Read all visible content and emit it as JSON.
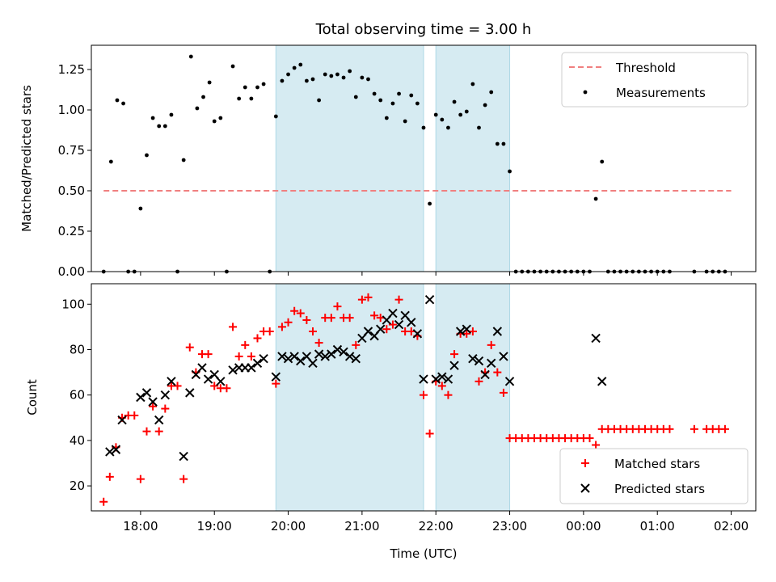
{
  "chart_data": [
    {
      "type": "scatter",
      "title": "Total observing time = 3.00 h",
      "xlabel": "",
      "ylabel": "Matched/Predicted stars",
      "xlim": [
        "17:20",
        "02:20"
      ],
      "ylim": [
        0,
        1.4
      ],
      "yticks": [
        "0.00",
        "0.25",
        "0.50",
        "0.75",
        "1.00",
        "1.25"
      ],
      "shaded_intervals": [
        [
          "19:50",
          "21:50"
        ],
        [
          "22:00",
          "23:00"
        ]
      ],
      "legend_position": "top-right",
      "threshold": {
        "name": "Threshold",
        "value": 0.5,
        "x_range": [
          "17:30",
          "02:00"
        ],
        "color": "#f08080",
        "style": "dashed"
      },
      "series": [
        {
          "name": "Measurements",
          "color": "#000000",
          "points": [
            [
              "17:30",
              0.0
            ],
            [
              "17:36",
              0.68
            ],
            [
              "17:41",
              1.06
            ],
            [
              "17:46",
              1.04
            ],
            [
              "17:50",
              0.0
            ],
            [
              "17:55",
              0.0
            ],
            [
              "18:00",
              0.39
            ],
            [
              "18:05",
              0.72
            ],
            [
              "18:10",
              0.95
            ],
            [
              "18:15",
              0.9
            ],
            [
              "18:20",
              0.9
            ],
            [
              "18:25",
              0.97
            ],
            [
              "18:30",
              0.0
            ],
            [
              "18:35",
              0.69
            ],
            [
              "18:41",
              1.33
            ],
            [
              "18:46",
              1.01
            ],
            [
              "18:51",
              1.08
            ],
            [
              "18:56",
              1.17
            ],
            [
              "19:00",
              0.93
            ],
            [
              "19:05",
              0.95
            ],
            [
              "19:10",
              0.0
            ],
            [
              "19:15",
              1.27
            ],
            [
              "19:20",
              1.07
            ],
            [
              "19:25",
              1.14
            ],
            [
              "19:30",
              1.07
            ],
            [
              "19:35",
              1.14
            ],
            [
              "19:40",
              1.16
            ],
            [
              "19:45",
              0.0
            ],
            [
              "19:50",
              0.96
            ],
            [
              "19:55",
              1.18
            ],
            [
              "20:00",
              1.22
            ],
            [
              "20:05",
              1.26
            ],
            [
              "20:10",
              1.28
            ],
            [
              "20:15",
              1.18
            ],
            [
              "20:20",
              1.19
            ],
            [
              "20:25",
              1.06
            ],
            [
              "20:30",
              1.22
            ],
            [
              "20:35",
              1.21
            ],
            [
              "20:40",
              1.22
            ],
            [
              "20:45",
              1.2
            ],
            [
              "20:50",
              1.24
            ],
            [
              "20:55",
              1.08
            ],
            [
              "21:00",
              1.2
            ],
            [
              "21:05",
              1.19
            ],
            [
              "21:10",
              1.1
            ],
            [
              "21:15",
              1.06
            ],
            [
              "21:20",
              0.95
            ],
            [
              "21:25",
              1.04
            ],
            [
              "21:30",
              1.1
            ],
            [
              "21:35",
              0.93
            ],
            [
              "21:40",
              1.09
            ],
            [
              "21:45",
              1.04
            ],
            [
              "21:50",
              0.89
            ],
            [
              "21:55",
              0.42
            ],
            [
              "22:00",
              0.97
            ],
            [
              "22:05",
              0.94
            ],
            [
              "22:10",
              0.89
            ],
            [
              "22:15",
              1.05
            ],
            [
              "22:20",
              0.97
            ],
            [
              "22:25",
              0.99
            ],
            [
              "22:30",
              1.16
            ],
            [
              "22:35",
              0.89
            ],
            [
              "22:40",
              1.03
            ],
            [
              "22:45",
              1.11
            ],
            [
              "22:50",
              0.79
            ],
            [
              "22:55",
              0.79
            ],
            [
              "23:00",
              0.62
            ],
            [
              "23:05",
              0.0
            ],
            [
              "23:10",
              0.0
            ],
            [
              "23:15",
              0.0
            ],
            [
              "23:20",
              0.0
            ],
            [
              "23:25",
              0.0
            ],
            [
              "23:30",
              0.0
            ],
            [
              "23:35",
              0.0
            ],
            [
              "23:40",
              0.0
            ],
            [
              "23:45",
              0.0
            ],
            [
              "23:50",
              0.0
            ],
            [
              "23:55",
              0.0
            ],
            [
              "00:00",
              0.0
            ],
            [
              "00:05",
              0.0
            ],
            [
              "00:10",
              0.45
            ],
            [
              "00:15",
              0.68
            ],
            [
              "00:20",
              0.0
            ],
            [
              "00:25",
              0.0
            ],
            [
              "00:30",
              0.0
            ],
            [
              "00:35",
              0.0
            ],
            [
              "00:40",
              0.0
            ],
            [
              "00:45",
              0.0
            ],
            [
              "00:50",
              0.0
            ],
            [
              "00:55",
              0.0
            ],
            [
              "01:00",
              0.0
            ],
            [
              "01:05",
              0.0
            ],
            [
              "01:10",
              0.0
            ],
            [
              "01:30",
              0.0
            ],
            [
              "01:40",
              0.0
            ],
            [
              "01:45",
              0.0
            ],
            [
              "01:50",
              0.0
            ],
            [
              "01:55",
              0.0
            ]
          ]
        }
      ]
    },
    {
      "type": "scatter",
      "title": "",
      "xlabel": "Time (UTC)",
      "ylabel": "Count",
      "xlim": [
        "17:20",
        "02:20"
      ],
      "ylim": [
        9,
        109
      ],
      "xticks": [
        "18:00",
        "19:00",
        "20:00",
        "21:00",
        "22:00",
        "23:00",
        "00:00",
        "01:00",
        "02:00"
      ],
      "yticks": [
        "20",
        "40",
        "60",
        "80",
        "100"
      ],
      "shaded_intervals": [
        [
          "19:50",
          "21:50"
        ],
        [
          "22:00",
          "23:00"
        ]
      ],
      "legend_position": "bottom-right",
      "series": [
        {
          "name": "Matched stars",
          "marker": "plus",
          "color": "#ff0000",
          "points": [
            [
              "17:30",
              13
            ],
            [
              "17:35",
              24
            ],
            [
              "17:40",
              37
            ],
            [
              "17:45",
              50
            ],
            [
              "17:50",
              51
            ],
            [
              "17:55",
              51
            ],
            [
              "18:00",
              23
            ],
            [
              "18:05",
              44
            ],
            [
              "18:10",
              55
            ],
            [
              "18:15",
              44
            ],
            [
              "18:20",
              54
            ],
            [
              "18:25",
              64
            ],
            [
              "18:30",
              64
            ],
            [
              "18:35",
              23
            ],
            [
              "18:40",
              81
            ],
            [
              "18:45",
              70
            ],
            [
              "18:50",
              78
            ],
            [
              "18:55",
              78
            ],
            [
              "19:00",
              64
            ],
            [
              "19:05",
              63
            ],
            [
              "19:10",
              63
            ],
            [
              "19:15",
              90
            ],
            [
              "19:20",
              77
            ],
            [
              "19:25",
              82
            ],
            [
              "19:30",
              77
            ],
            [
              "19:35",
              85
            ],
            [
              "19:40",
              88
            ],
            [
              "19:45",
              88
            ],
            [
              "19:50",
              65
            ],
            [
              "19:55",
              90
            ],
            [
              "20:00",
              92
            ],
            [
              "20:05",
              97
            ],
            [
              "20:10",
              96
            ],
            [
              "20:15",
              93
            ],
            [
              "20:20",
              88
            ],
            [
              "20:25",
              83
            ],
            [
              "20:30",
              94
            ],
            [
              "20:35",
              94
            ],
            [
              "20:40",
              99
            ],
            [
              "20:45",
              94
            ],
            [
              "20:50",
              94
            ],
            [
              "20:55",
              82
            ],
            [
              "21:00",
              102
            ],
            [
              "21:05",
              103
            ],
            [
              "21:10",
              95
            ],
            [
              "21:15",
              94
            ],
            [
              "21:20",
              89
            ],
            [
              "21:25",
              91
            ],
            [
              "21:30",
              102
            ],
            [
              "21:35",
              88
            ],
            [
              "21:40",
              88
            ],
            [
              "21:45",
              86
            ],
            [
              "21:50",
              60
            ],
            [
              "21:55",
              43
            ],
            [
              "22:00",
              66
            ],
            [
              "22:05",
              64
            ],
            [
              "22:10",
              60
            ],
            [
              "22:15",
              78
            ],
            [
              "22:20",
              87
            ],
            [
              "22:25",
              87
            ],
            [
              "22:30",
              88
            ],
            [
              "22:35",
              66
            ],
            [
              "22:40",
              70
            ],
            [
              "22:45",
              82
            ],
            [
              "22:50",
              70
            ],
            [
              "22:55",
              61
            ],
            [
              "23:00",
              41
            ],
            [
              "23:05",
              41
            ],
            [
              "23:10",
              41
            ],
            [
              "23:15",
              41
            ],
            [
              "23:20",
              41
            ],
            [
              "23:25",
              41
            ],
            [
              "23:30",
              41
            ],
            [
              "23:35",
              41
            ],
            [
              "23:40",
              41
            ],
            [
              "23:45",
              41
            ],
            [
              "23:50",
              41
            ],
            [
              "23:55",
              41
            ],
            [
              "00:00",
              41
            ],
            [
              "00:05",
              41
            ],
            [
              "00:10",
              38
            ],
            [
              "00:15",
              45
            ],
            [
              "00:20",
              45
            ],
            [
              "00:25",
              45
            ],
            [
              "00:30",
              45
            ],
            [
              "00:35",
              45
            ],
            [
              "00:40",
              45
            ],
            [
              "00:45",
              45
            ],
            [
              "00:50",
              45
            ],
            [
              "00:55",
              45
            ],
            [
              "01:00",
              45
            ],
            [
              "01:05",
              45
            ],
            [
              "01:10",
              45
            ],
            [
              "01:30",
              45
            ],
            [
              "01:40",
              45
            ],
            [
              "01:45",
              45
            ],
            [
              "01:50",
              45
            ],
            [
              "01:55",
              45
            ]
          ]
        },
        {
          "name": "Predicted stars",
          "marker": "x",
          "color": "#000000",
          "points": [
            [
              "17:35",
              35
            ],
            [
              "17:40",
              36
            ],
            [
              "17:45",
              49
            ],
            [
              "18:00",
              59
            ],
            [
              "18:05",
              61
            ],
            [
              "18:10",
              57
            ],
            [
              "18:15",
              49
            ],
            [
              "18:20",
              60
            ],
            [
              "18:25",
              66
            ],
            [
              "18:35",
              33
            ],
            [
              "18:40",
              61
            ],
            [
              "18:45",
              69
            ],
            [
              "18:50",
              72
            ],
            [
              "18:55",
              67
            ],
            [
              "19:00",
              69
            ],
            [
              "19:05",
              66
            ],
            [
              "19:15",
              71
            ],
            [
              "19:20",
              72
            ],
            [
              "19:25",
              72
            ],
            [
              "19:30",
              72
            ],
            [
              "19:35",
              74
            ],
            [
              "19:40",
              76
            ],
            [
              "19:50",
              68
            ],
            [
              "19:55",
              77
            ],
            [
              "20:00",
              76
            ],
            [
              "20:05",
              77
            ],
            [
              "20:10",
              75
            ],
            [
              "20:15",
              77
            ],
            [
              "20:20",
              74
            ],
            [
              "20:25",
              78
            ],
            [
              "20:30",
              77
            ],
            [
              "20:35",
              78
            ],
            [
              "20:40",
              80
            ],
            [
              "20:45",
              79
            ],
            [
              "20:50",
              77
            ],
            [
              "20:55",
              76
            ],
            [
              "21:00",
              85
            ],
            [
              "21:05",
              88
            ],
            [
              "21:10",
              86
            ],
            [
              "21:15",
              89
            ],
            [
              "21:20",
              93
            ],
            [
              "21:25",
              96
            ],
            [
              "21:30",
              91
            ],
            [
              "21:35",
              95
            ],
            [
              "21:40",
              92
            ],
            [
              "21:45",
              87
            ],
            [
              "21:50",
              67
            ],
            [
              "21:55",
              102
            ],
            [
              "22:00",
              67
            ],
            [
              "22:05",
              68
            ],
            [
              "22:10",
              67
            ],
            [
              "22:15",
              73
            ],
            [
              "22:20",
              88
            ],
            [
              "22:25",
              89
            ],
            [
              "22:30",
              76
            ],
            [
              "22:35",
              75
            ],
            [
              "22:40",
              69
            ],
            [
              "22:45",
              74
            ],
            [
              "22:50",
              88
            ],
            [
              "22:55",
              77
            ],
            [
              "23:00",
              66
            ],
            [
              "00:10",
              85
            ],
            [
              "00:15",
              66
            ]
          ]
        }
      ]
    }
  ]
}
